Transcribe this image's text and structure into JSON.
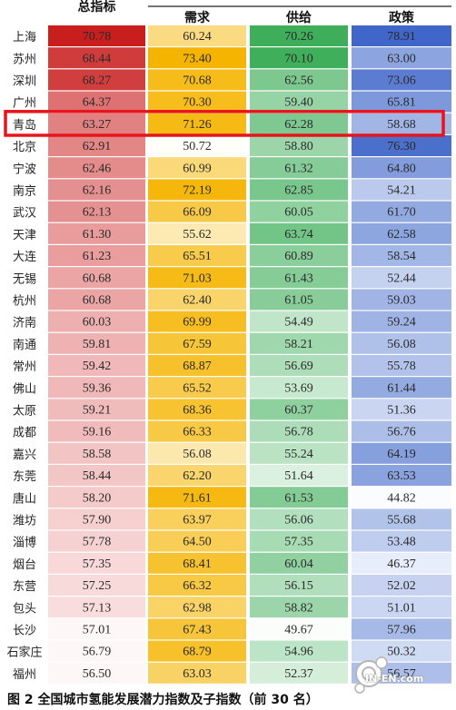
{
  "chart_data": {
    "type": "heatmap",
    "columns": [
      "总指标",
      "需求",
      "供给",
      "政策"
    ],
    "cities": [
      "上海",
      "苏州",
      "深圳",
      "广州",
      "青岛",
      "北京",
      "宁波",
      "南京",
      "武汉",
      "天津",
      "大连",
      "无锡",
      "杭州",
      "济南",
      "南通",
      "常州",
      "佛山",
      "太原",
      "成都",
      "嘉兴",
      "东莞",
      "唐山",
      "潍坊",
      "淄博",
      "烟台",
      "东营",
      "包头",
      "长沙",
      "石家庄",
      "福州"
    ],
    "values": [
      [
        "70.78",
        "60.24",
        "70.26",
        "78.91"
      ],
      [
        "68.44",
        "73.40",
        "70.10",
        "63.00"
      ],
      [
        "68.27",
        "70.68",
        "62.56",
        "73.06"
      ],
      [
        "64.37",
        "70.30",
        "59.40",
        "65.81"
      ],
      [
        "63.27",
        "71.26",
        "62.28",
        "58.68"
      ],
      [
        "62.91",
        "50.72",
        "58.80",
        "76.30"
      ],
      [
        "62.46",
        "60.99",
        "61.32",
        "64.80"
      ],
      [
        "62.16",
        "72.19",
        "62.85",
        "54.21"
      ],
      [
        "62.13",
        "66.09",
        "60.05",
        "61.70"
      ],
      [
        "61.30",
        "55.62",
        "63.74",
        "62.58"
      ],
      [
        "61.23",
        "65.51",
        "60.89",
        "58.54"
      ],
      [
        "60.68",
        "71.03",
        "61.43",
        "52.44"
      ],
      [
        "60.68",
        "62.40",
        "61.05",
        "59.03"
      ],
      [
        "60.03",
        "69.99",
        "54.49",
        "59.24"
      ],
      [
        "59.81",
        "67.59",
        "58.21",
        "56.08"
      ],
      [
        "59.42",
        "68.87",
        "56.69",
        "55.78"
      ],
      [
        "59.36",
        "65.52",
        "53.69",
        "61.44"
      ],
      [
        "59.21",
        "68.36",
        "60.37",
        "51.36"
      ],
      [
        "59.16",
        "66.33",
        "56.78",
        "56.76"
      ],
      [
        "58.58",
        "56.08",
        "55.24",
        "64.19"
      ],
      [
        "58.44",
        "62.20",
        "51.64",
        "63.53"
      ],
      [
        "58.20",
        "71.61",
        "61.53",
        "44.82"
      ],
      [
        "57.90",
        "63.97",
        "56.06",
        "55.68"
      ],
      [
        "57.78",
        "64.50",
        "57.35",
        "53.48"
      ],
      [
        "57.35",
        "68.41",
        "60.04",
        "46.37"
      ],
      [
        "57.25",
        "66.32",
        "56.15",
        "52.02"
      ],
      [
        "57.13",
        "62.98",
        "58.82",
        "51.01"
      ],
      [
        "57.01",
        "67.43",
        "49.67",
        "57.96"
      ],
      [
        "56.79",
        "68.79",
        "54.96",
        "50.32"
      ],
      [
        "56.50",
        "63.03",
        "52.37",
        "56.57"
      ]
    ],
    "highlight_row": 4,
    "highlight_color": "#e8141c",
    "column_colors": [
      "#c81e1e",
      "#f5b400",
      "#3fae5b",
      "#3f66c8"
    ],
    "caption": "图 2 全国城市氢能发展潜力指数及子指数（前 30 名）",
    "watermark": "IN-EN.com"
  }
}
